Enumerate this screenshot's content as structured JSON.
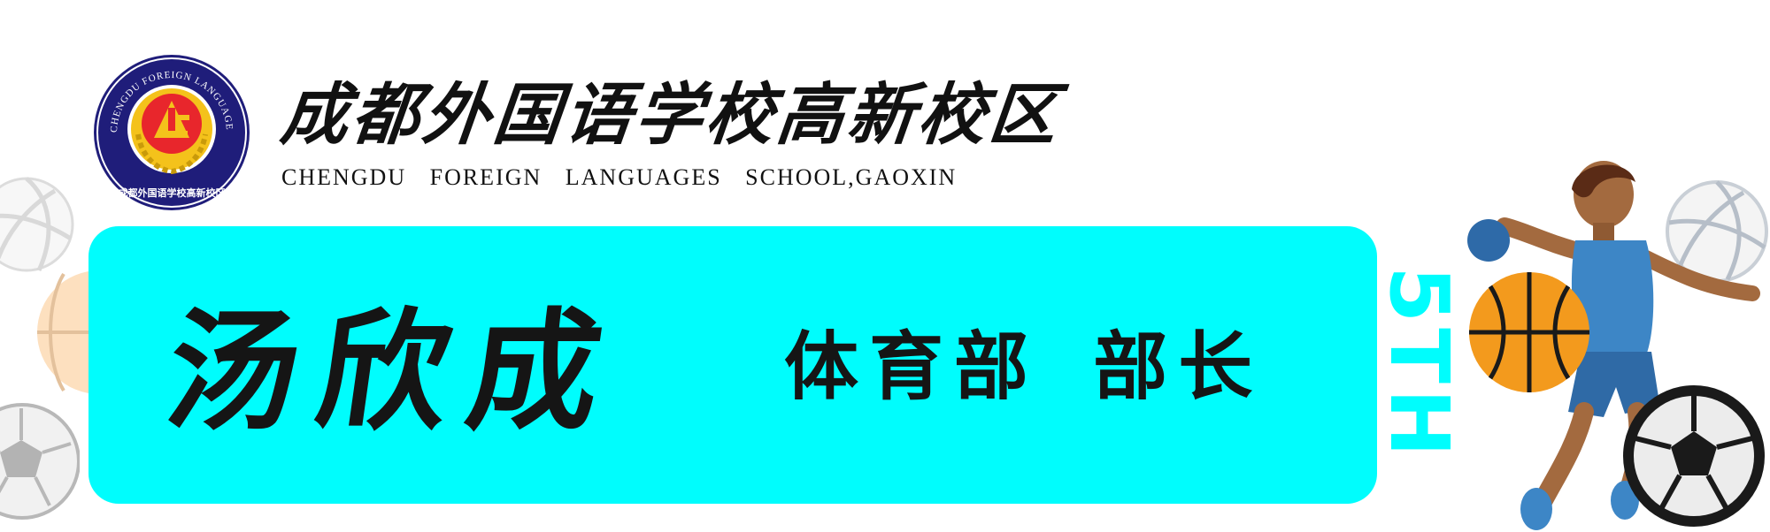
{
  "header": {
    "school_name_cn": "成都外国语学校高新校区",
    "school_name_en": "CHENGDU FOREIGN LANGUAGES SCHOOL,GAOXIN",
    "emblem": {
      "ring_text": "CHENGDU FOREIGN LANGUAGES SCHOOL,GAOXIN",
      "inner_text": "成都外国语学校高新校区"
    }
  },
  "banner": {
    "name": "汤欣成",
    "title": "体育部 部长",
    "edition_label": "5TH"
  },
  "colors": {
    "banner": "#00fdfd",
    "emblem_ring": "#1f1d7a",
    "emblem_center": "#e8262c",
    "emblem_gold": "#f4c21b",
    "text": "#151515",
    "basketball": "#f39a1d",
    "jersey": "#3d86c6",
    "shorts": "#2f6aa6",
    "skin": "#a36a3f"
  },
  "icons": [
    "school-emblem-icon",
    "volleyball-icon",
    "basketball-icon",
    "soccer-ball-icon",
    "athlete-figure-icon"
  ]
}
